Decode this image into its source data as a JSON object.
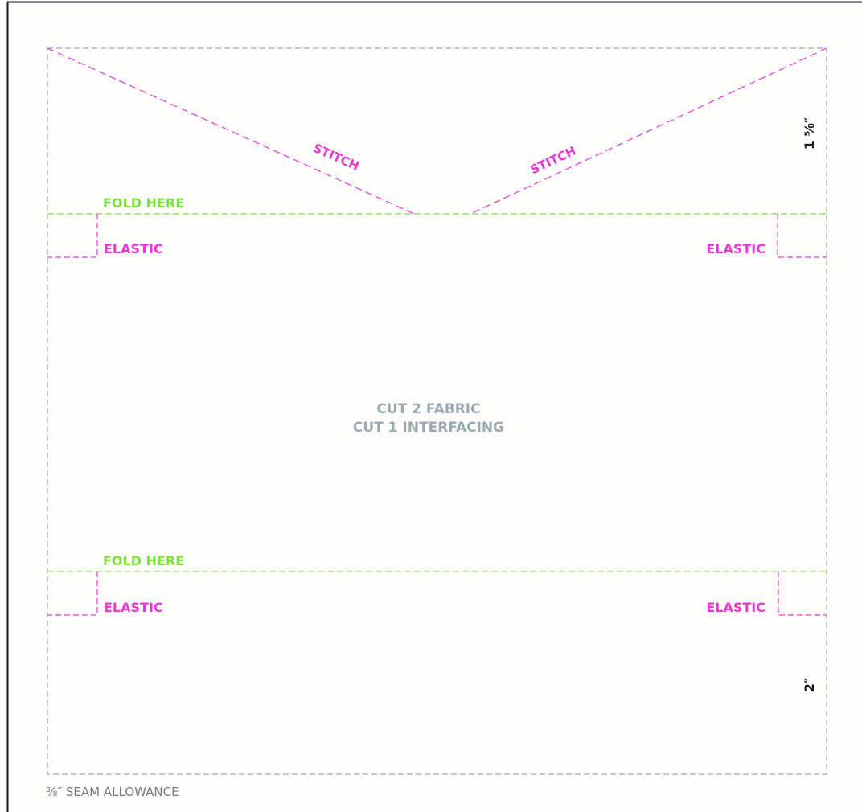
{
  "pattern": {
    "stitch_labels": [
      "STITCH",
      "STITCH"
    ],
    "fold_labels": [
      "FOLD HERE",
      "FOLD HERE"
    ],
    "elastic_labels": [
      "ELASTIC",
      "ELASTIC",
      "ELASTIC",
      "ELASTIC"
    ],
    "cut_instructions": [
      "CUT 2 FABRIC",
      "CUT 1 INTERFACING"
    ],
    "top_measurement": "1 ⅝″",
    "bottom_measurement": "2″",
    "seam_allowance": "⅜″ SEAM ALLOWANCE"
  },
  "colors": {
    "background": "#fdfdfb",
    "frame": "#1a1a1a",
    "cut_line": "#a8a8a8",
    "stitch_line": "#e639d2",
    "fold_line": "#7ee23a",
    "instruction_text": "#9aabb0",
    "measurement_text": "#1a1a1a",
    "seam_text": "#7a7a7a"
  }
}
